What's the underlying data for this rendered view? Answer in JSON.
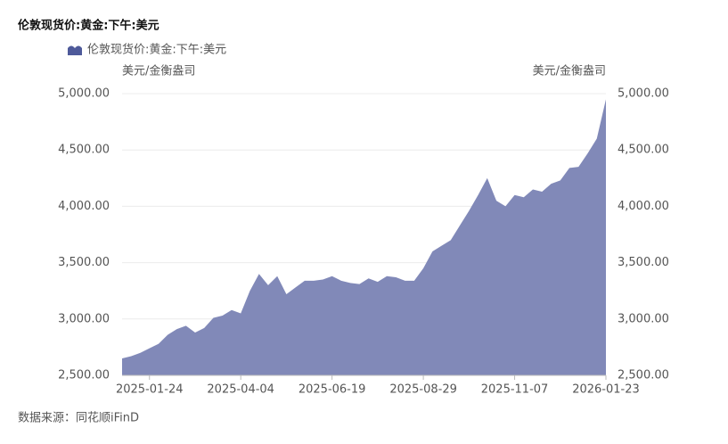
{
  "chart_data": {
    "type": "area",
    "title": "伦敦现货价:黄金:下午:美元",
    "y_unit": "美元/金衡盎司",
    "y2_unit": "美元/金衡盎司",
    "source": "数据来源：同花顺iFinD",
    "categories": [
      null,
      null,
      null,
      "2025-01-24",
      null,
      null,
      null,
      null,
      null,
      null,
      null,
      null,
      null,
      "2025-04-04",
      null,
      null,
      null,
      null,
      null,
      null,
      null,
      null,
      null,
      "2025-06-19",
      null,
      null,
      null,
      null,
      null,
      null,
      null,
      null,
      null,
      "2025-08-29",
      null,
      null,
      null,
      null,
      null,
      null,
      null,
      null,
      null,
      "2025-11-07",
      null,
      null,
      null,
      null,
      null,
      null,
      null,
      null,
      null,
      "2026-01-23"
    ],
    "series": [
      {
        "name": "伦敦现货价:黄金:下午:美元",
        "color": "#8189b8",
        "values": [
          2650,
          2670,
          2700,
          2740,
          2780,
          2860,
          2910,
          2940,
          2880,
          2920,
          3010,
          3030,
          3080,
          3050,
          3250,
          3400,
          3300,
          3380,
          3220,
          3280,
          3340,
          3340,
          3350,
          3380,
          3340,
          3320,
          3310,
          3360,
          3330,
          3380,
          3370,
          3340,
          3340,
          3450,
          3600,
          3650,
          3700,
          3830,
          3960,
          4100,
          4250,
          4050,
          4000,
          4100,
          4080,
          4150,
          4130,
          4200,
          4230,
          4340,
          4350,
          4470,
          4600,
          4950
        ]
      }
    ],
    "ylim": [
      2500,
      5000
    ],
    "yticks": [
      {
        "value": 2500,
        "label": "2,500.00"
      },
      {
        "value": 3000,
        "label": "3,000.00"
      },
      {
        "value": 3500,
        "label": "3,500.00"
      },
      {
        "value": 4000,
        "label": "4,000.00"
      },
      {
        "value": 4500,
        "label": "4,500.00"
      },
      {
        "value": 5000,
        "label": "5,000.00"
      }
    ],
    "y2lim": [
      2500,
      5000
    ],
    "y2ticks": [
      {
        "value": 2500,
        "label": "2,500.00"
      },
      {
        "value": 3000,
        "label": "3,000.00"
      },
      {
        "value": 3500,
        "label": "3,500.00"
      },
      {
        "value": 4000,
        "label": "4,000.00"
      },
      {
        "value": 4500,
        "label": "4,500.00"
      },
      {
        "value": 5000,
        "label": "5,000.00"
      }
    ],
    "grid": true
  }
}
